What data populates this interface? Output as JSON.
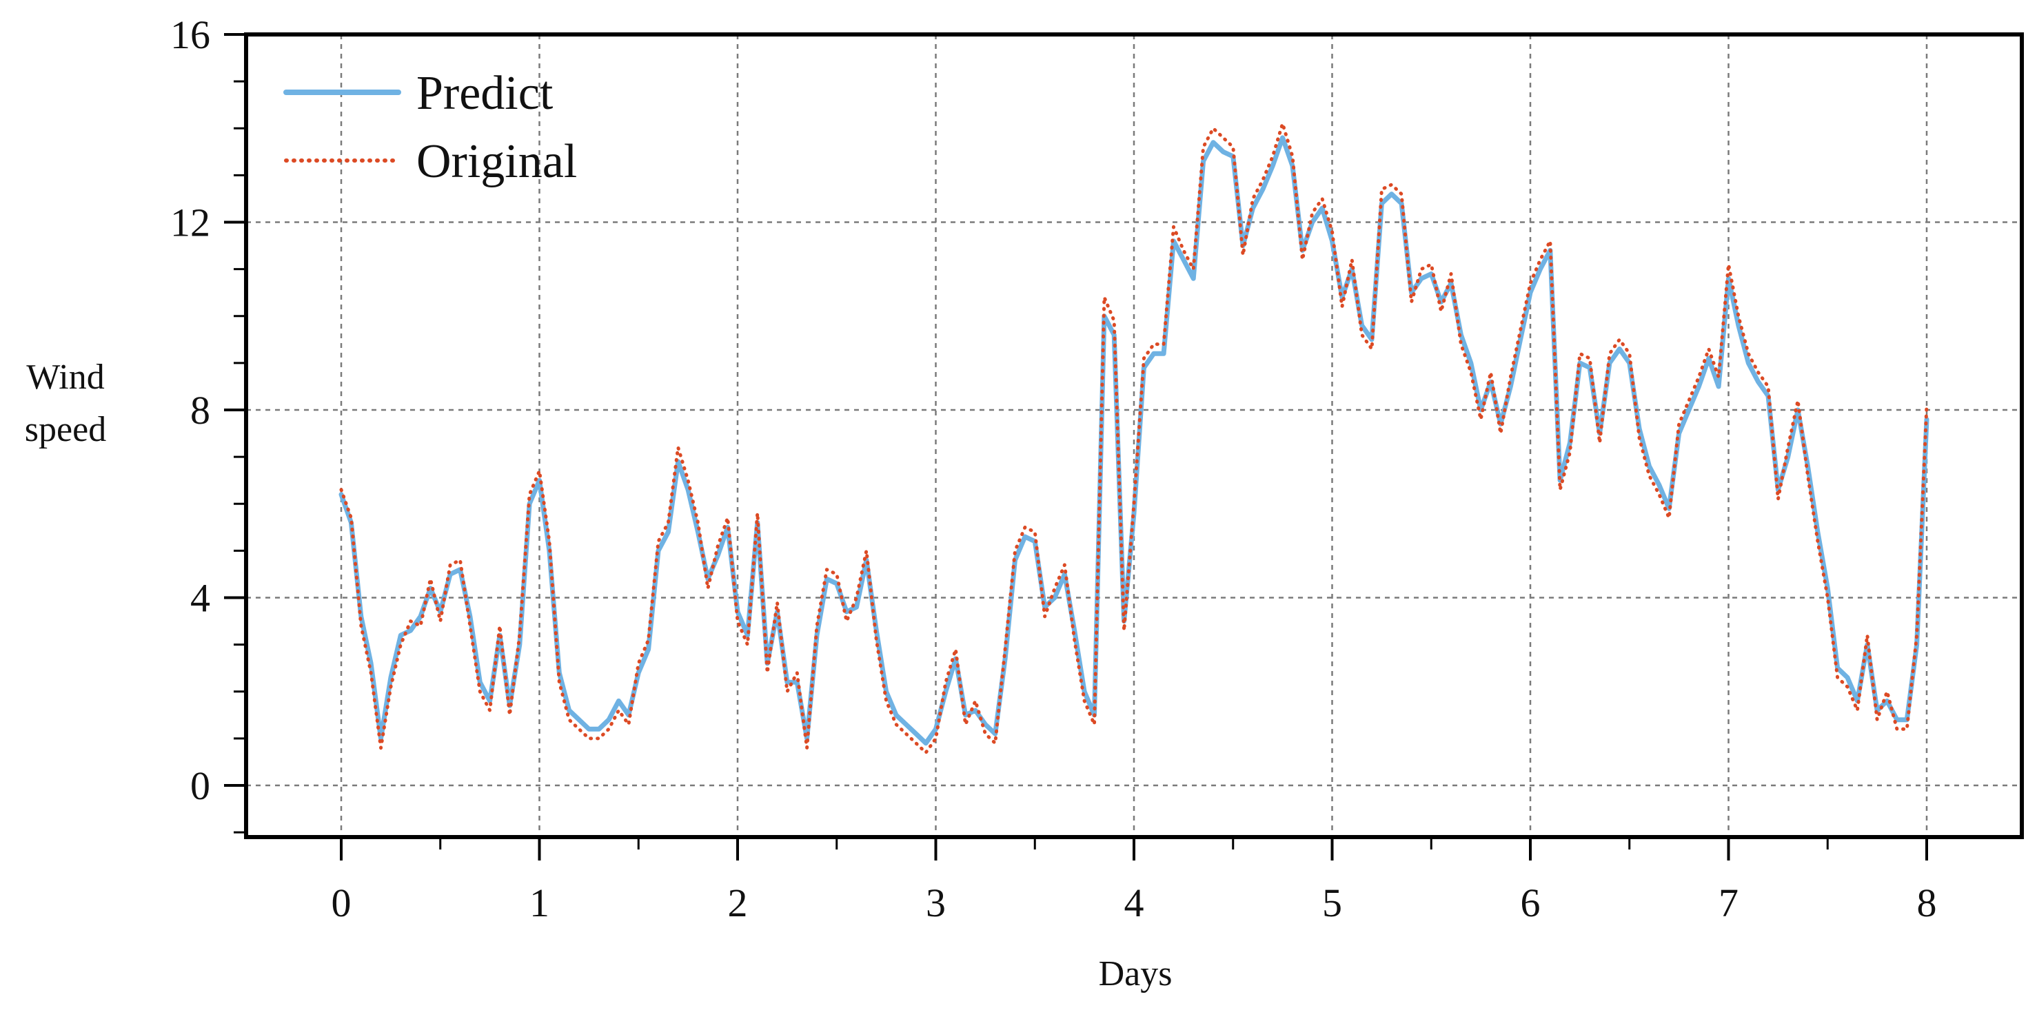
{
  "colors": {
    "predict": "#6fb2e3",
    "original": "#dc4a24",
    "grid": "#7a7a7a",
    "axis": "#000000"
  },
  "chart_data": {
    "type": "line",
    "title": "",
    "xlabel": "Days",
    "ylabel_lines": [
      "Wind",
      "speed"
    ],
    "xlim": [
      -0.48,
      8.48
    ],
    "ylim": [
      -1.1,
      16
    ],
    "xticks": [
      0,
      1,
      2,
      3,
      4,
      5,
      6,
      7,
      8
    ],
    "yticks": [
      0,
      4,
      8,
      12,
      16
    ],
    "x_tick_labels": [
      "0",
      "1",
      "2",
      "3",
      "4",
      "5",
      "6",
      "7",
      "8"
    ],
    "y_tick_labels": [
      "0",
      "4",
      "8",
      "12",
      "16"
    ],
    "grid": true,
    "legend_position": "top-left",
    "series_style": [
      {
        "name": "Predict",
        "style": "solid"
      },
      {
        "name": "Original",
        "style": "dotted"
      }
    ],
    "x": [
      0,
      0.05,
      0.1,
      0.15,
      0.2,
      0.25,
      0.3,
      0.35,
      0.4,
      0.45,
      0.5,
      0.55,
      0.6,
      0.65,
      0.7,
      0.75,
      0.8,
      0.85,
      0.9,
      0.95,
      1,
      1.05,
      1.1,
      1.15,
      1.2,
      1.25,
      1.3,
      1.35,
      1.4,
      1.45,
      1.5,
      1.55,
      1.6,
      1.65,
      1.7,
      1.75,
      1.8,
      1.85,
      1.9,
      1.95,
      2,
      2.05,
      2.1,
      2.15,
      2.2,
      2.25,
      2.3,
      2.35,
      2.4,
      2.45,
      2.5,
      2.55,
      2.6,
      2.65,
      2.7,
      2.75,
      2.8,
      2.85,
      2.9,
      2.95,
      3,
      3.05,
      3.1,
      3.15,
      3.2,
      3.25,
      3.3,
      3.35,
      3.4,
      3.45,
      3.5,
      3.55,
      3.6,
      3.65,
      3.7,
      3.75,
      3.8,
      3.85,
      3.9,
      3.95,
      4,
      4.05,
      4.1,
      4.15,
      4.2,
      4.25,
      4.3,
      4.35,
      4.4,
      4.45,
      4.5,
      4.55,
      4.6,
      4.65,
      4.7,
      4.75,
      4.8,
      4.85,
      4.9,
      4.95,
      5,
      5.05,
      5.1,
      5.15,
      5.2,
      5.25,
      5.3,
      5.35,
      5.4,
      5.45,
      5.5,
      5.55,
      5.6,
      5.65,
      5.7,
      5.75,
      5.8,
      5.85,
      5.9,
      5.95,
      6,
      6.05,
      6.1,
      6.15,
      6.2,
      6.25,
      6.3,
      6.35,
      6.4,
      6.45,
      6.5,
      6.55,
      6.6,
      6.65,
      6.7,
      6.75,
      6.8,
      6.85,
      6.9,
      6.95,
      7,
      7.05,
      7.1,
      7.15,
      7.2,
      7.25,
      7.3,
      7.35,
      7.4,
      7.45,
      7.5,
      7.55,
      7.6,
      7.65,
      7.7,
      7.75,
      7.8,
      7.85,
      7.9,
      7.95,
      8
    ],
    "series": [
      {
        "name": "Predict",
        "values": [
          6.2,
          5.6,
          3.6,
          2.6,
          1.0,
          2.3,
          3.2,
          3.3,
          3.6,
          4.2,
          3.7,
          4.5,
          4.6,
          3.6,
          2.2,
          1.8,
          3.2,
          1.7,
          3.0,
          6.0,
          6.5,
          5.0,
          2.4,
          1.6,
          1.4,
          1.2,
          1.2,
          1.4,
          1.8,
          1.5,
          2.4,
          2.9,
          5.0,
          5.4,
          6.9,
          6.3,
          5.4,
          4.4,
          4.9,
          5.5,
          3.7,
          3.2,
          5.6,
          2.6,
          3.7,
          2.2,
          2.2,
          1.0,
          3.2,
          4.4,
          4.3,
          3.7,
          3.8,
          4.8,
          3.3,
          2.0,
          1.5,
          1.3,
          1.1,
          0.9,
          1.2,
          2.0,
          2.7,
          1.5,
          1.6,
          1.3,
          1.1,
          2.7,
          4.8,
          5.3,
          5.2,
          3.8,
          4.0,
          4.5,
          3.3,
          2.0,
          1.5,
          10.0,
          9.6,
          3.5,
          5.8,
          8.9,
          9.2,
          9.2,
          11.6,
          11.2,
          10.8,
          13.3,
          13.7,
          13.5,
          13.4,
          11.5,
          12.3,
          12.7,
          13.2,
          13.8,
          13.2,
          11.4,
          12.0,
          12.3,
          11.6,
          10.4,
          11.0,
          9.8,
          9.5,
          12.4,
          12.6,
          12.4,
          10.5,
          10.8,
          10.9,
          10.3,
          10.7,
          9.6,
          9.0,
          8.0,
          8.6,
          7.7,
          8.5,
          9.5,
          10.5,
          11.0,
          11.4,
          6.5,
          7.3,
          9.0,
          8.9,
          7.5,
          9.0,
          9.3,
          9.0,
          7.6,
          6.8,
          6.4,
          5.9,
          7.5,
          8.0,
          8.5,
          9.1,
          8.5,
          10.8,
          9.8,
          9.0,
          8.6,
          8.3,
          6.3,
          7.0,
          8.0,
          6.8,
          5.4,
          4.2,
          2.5,
          2.3,
          1.8,
          3.0,
          1.6,
          1.8,
          1.4,
          1.4,
          3.0,
          7.8
        ]
      },
      {
        "name": "Original",
        "values": [
          6.3,
          5.7,
          3.4,
          2.4,
          0.8,
          2.1,
          3.0,
          3.5,
          3.4,
          4.4,
          3.5,
          4.7,
          4.8,
          3.4,
          2.0,
          1.6,
          3.4,
          1.5,
          3.2,
          6.2,
          6.7,
          5.2,
          2.2,
          1.4,
          1.2,
          1.0,
          1.0,
          1.2,
          1.6,
          1.3,
          2.6,
          3.1,
          5.2,
          5.6,
          7.2,
          6.5,
          5.6,
          4.2,
          5.1,
          5.7,
          3.5,
          3.0,
          5.8,
          2.4,
          3.9,
          2.0,
          2.4,
          0.8,
          3.4,
          4.6,
          4.5,
          3.5,
          4.0,
          5.0,
          3.1,
          1.8,
          1.3,
          1.1,
          0.9,
          0.7,
          1.0,
          2.2,
          2.9,
          1.3,
          1.8,
          1.1,
          0.9,
          2.9,
          5.0,
          5.5,
          5.4,
          3.6,
          4.2,
          4.7,
          3.1,
          1.8,
          1.3,
          10.4,
          9.9,
          3.3,
          6.0,
          9.1,
          9.4,
          9.4,
          11.9,
          11.4,
          11.0,
          13.6,
          14.0,
          13.8,
          13.6,
          11.3,
          12.5,
          12.9,
          13.4,
          14.1,
          13.4,
          11.2,
          12.2,
          12.5,
          11.8,
          10.2,
          11.2,
          9.6,
          9.3,
          12.7,
          12.8,
          12.6,
          10.3,
          11.0,
          11.1,
          10.1,
          10.9,
          9.4,
          8.8,
          7.8,
          8.8,
          7.5,
          8.7,
          9.7,
          10.7,
          11.2,
          11.6,
          6.3,
          7.1,
          9.2,
          9.1,
          7.3,
          9.2,
          9.5,
          9.2,
          7.4,
          6.6,
          6.2,
          5.7,
          7.7,
          8.2,
          8.7,
          9.3,
          8.7,
          11.1,
          10.0,
          9.2,
          8.8,
          8.5,
          6.1,
          7.2,
          8.2,
          6.6,
          5.2,
          4.0,
          2.3,
          2.1,
          1.6,
          3.2,
          1.4,
          2.0,
          1.2,
          1.2,
          3.2,
          8.1
        ]
      }
    ]
  }
}
